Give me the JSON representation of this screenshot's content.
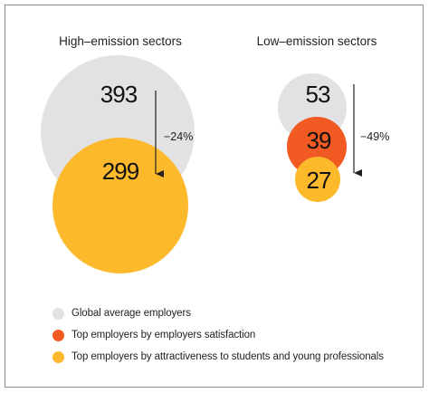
{
  "chart_data": {
    "type": "bubble",
    "panels": [
      {
        "title": "High–emission sectors",
        "values": [
          393,
          299
        ],
        "change": "−24%"
      },
      {
        "title": "Low–emission sectors",
        "values": [
          53,
          39,
          27
        ],
        "change": "−49%"
      }
    ],
    "series": [
      {
        "name": "Global average employers",
        "color": "#e2e2e4"
      },
      {
        "name": "Top employers by employers satisfaction",
        "color": "#f15a22"
      },
      {
        "name": "Top employers by attractiveness to students and young professionals",
        "color": "#fbb92b"
      }
    ]
  }
}
